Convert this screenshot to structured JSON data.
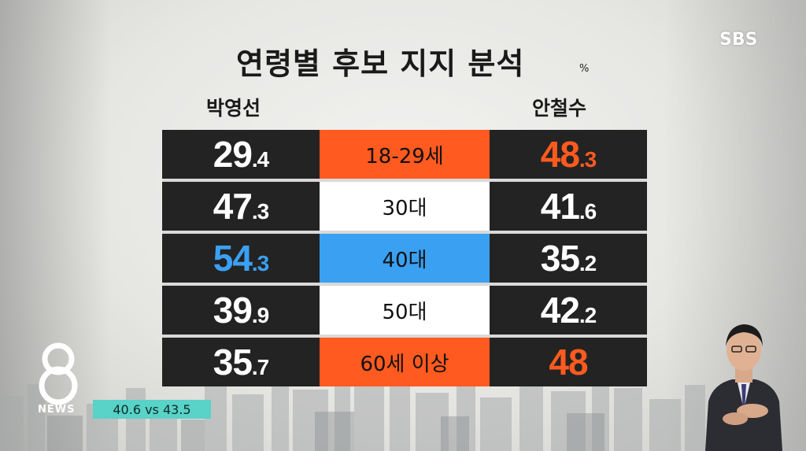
{
  "broadcaster_logo": "SBS",
  "title": "연령별 후보 지지 분석",
  "unit": "%",
  "candidates": {
    "left": "박영선",
    "right": "안철수"
  },
  "rows": [
    {
      "age": "18-29세",
      "left": {
        "int": "29",
        "dec": ".4"
      },
      "right": {
        "int": "48",
        "dec": ".3"
      },
      "highlight": "orange"
    },
    {
      "age": "30대",
      "left": {
        "int": "47",
        "dec": ".3"
      },
      "right": {
        "int": "41",
        "dec": ".6"
      },
      "highlight": "none"
    },
    {
      "age": "40대",
      "left": {
        "int": "54",
        "dec": ".3"
      },
      "right": {
        "int": "35",
        "dec": ".2"
      },
      "highlight": "blue"
    },
    {
      "age": "50대",
      "left": {
        "int": "39",
        "dec": ".9"
      },
      "right": {
        "int": "42",
        "dec": ".2"
      },
      "highlight": "none"
    },
    {
      "age": "60세 이상",
      "left": {
        "int": "35",
        "dec": ".7"
      },
      "right": {
        "int": "48",
        "dec": ""
      },
      "highlight": "orange"
    }
  ],
  "program_logo": {
    "number": "8",
    "label": "NEWS"
  },
  "ticker": "40.6 vs 43.5",
  "colors": {
    "orange": "#ff5a1f",
    "blue": "#3aa0f2",
    "cell_dark": "#232323",
    "ticker_bg": "#59d2c7"
  }
}
